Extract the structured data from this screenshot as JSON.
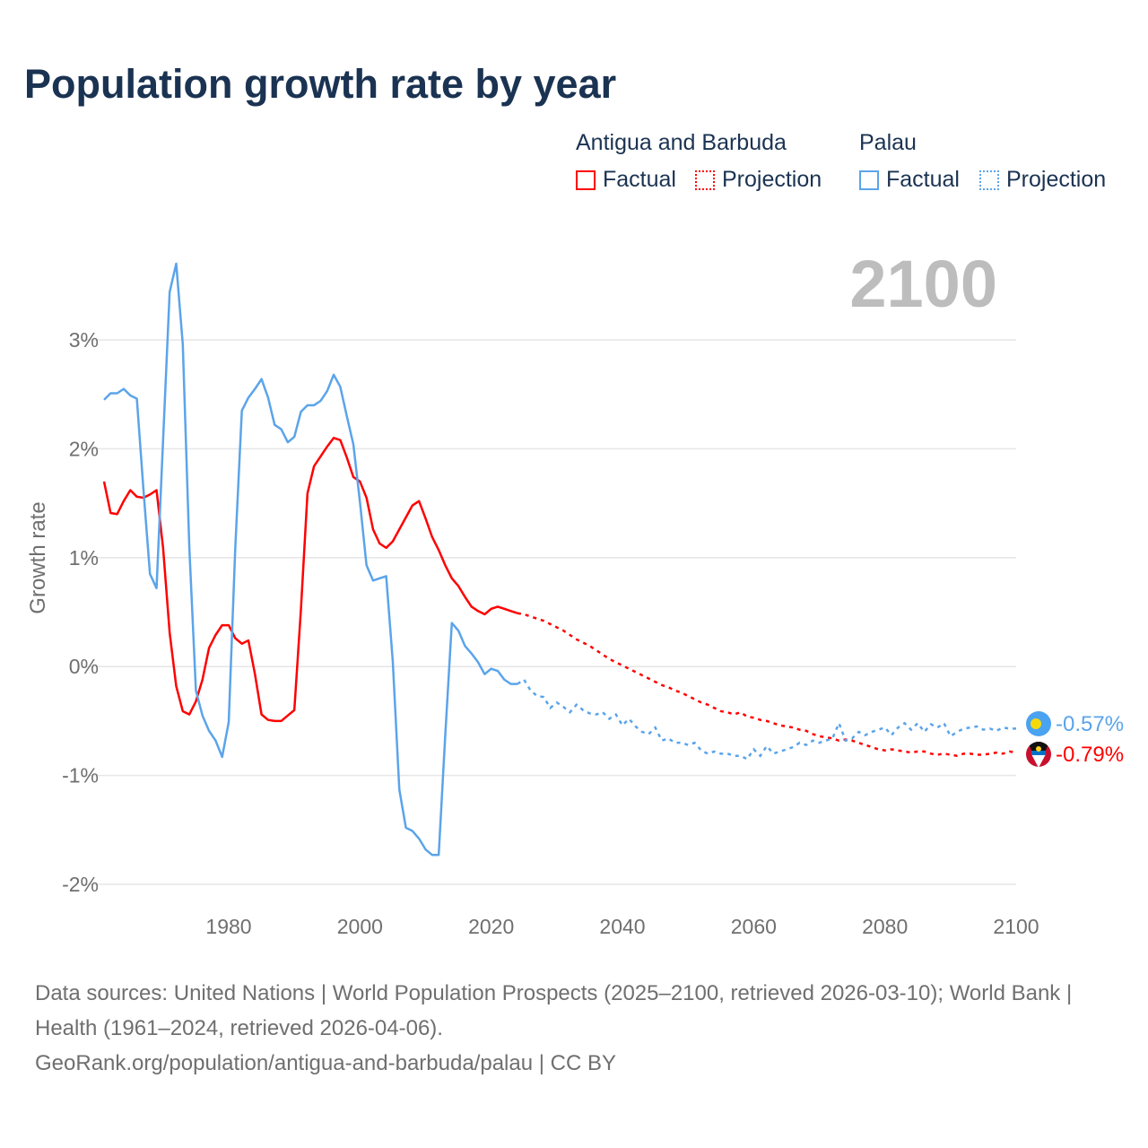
{
  "title": "Population growth rate by year",
  "legend": {
    "groups": [
      {
        "name": "Antigua and Barbuda",
        "factual": "Factual",
        "projection": "Projection",
        "color": "#ff0000"
      },
      {
        "name": "Palau",
        "factual": "Factual",
        "projection": "Projection",
        "color": "#5ba4ea"
      }
    ]
  },
  "year_display": "2100",
  "end_labels": {
    "palau": "-0.57%",
    "antigua": "-0.79%"
  },
  "footer": {
    "line1": "Data sources: United Nations | World Population Prospects (2025–2100, retrieved 2026-03-10); World Bank | Health (1961–2024, retrieved 2026-04-06).",
    "line2": "GeoRank.org/population/antigua-and-barbuda/palau | CC BY"
  },
  "chart_data": {
    "type": "line",
    "title": "Population growth rate by year",
    "xlabel": "",
    "ylabel": "Growth rate",
    "xlim": [
      1961,
      2100
    ],
    "ylim": [
      -2.2,
      3.8
    ],
    "xticks": [
      1980,
      2000,
      2020,
      2040,
      2060,
      2080,
      2100
    ],
    "xtick_labels": [
      "1980",
      "2000",
      "2020",
      "2040",
      "2060",
      "2080",
      "2100"
    ],
    "yticks": [
      3,
      2,
      1,
      0,
      -1,
      -2
    ],
    "ytick_labels": [
      "3%",
      "2%",
      "1%",
      "0%",
      "-1%",
      "-2%"
    ],
    "grid": true,
    "legend_position": "top-right",
    "series": [
      {
        "name": "Antigua and Barbuda",
        "color": "#ff0000",
        "factual_start": 1961,
        "factual": [
          1.7,
          1.41,
          1.4,
          1.52,
          1.62,
          1.56,
          1.55,
          1.58,
          1.62,
          1.09,
          0.31,
          -0.18,
          -0.41,
          -0.44,
          -0.32,
          -0.12,
          0.17,
          0.29,
          0.38,
          0.38,
          0.26,
          0.21,
          0.24,
          -0.07,
          -0.44,
          -0.49,
          -0.5,
          -0.5,
          -0.45,
          -0.4,
          0.52,
          1.59,
          1.84,
          1.93,
          2.02,
          2.1,
          2.08,
          1.92,
          1.74,
          1.7,
          1.55,
          1.26,
          1.13,
          1.09,
          1.15,
          1.26,
          1.37,
          1.48,
          1.52,
          1.36,
          1.19,
          1.07,
          0.93,
          0.81,
          0.74,
          0.64,
          0.55,
          0.51,
          0.48,
          0.53,
          0.55,
          0.53,
          0.51,
          0.49
        ],
        "projection_start": 2025,
        "projection": [
          0.48,
          0.46,
          0.44,
          0.42,
          0.39,
          0.36,
          0.33,
          0.29,
          0.25,
          0.22,
          0.19,
          0.15,
          0.11,
          0.07,
          0.04,
          0.01,
          -0.02,
          -0.05,
          -0.08,
          -0.11,
          -0.14,
          -0.17,
          -0.19,
          -0.22,
          -0.24,
          -0.27,
          -0.3,
          -0.33,
          -0.35,
          -0.38,
          -0.41,
          -0.42,
          -0.44,
          -0.42,
          -0.46,
          -0.47,
          -0.49,
          -0.5,
          -0.52,
          -0.54,
          -0.55,
          -0.56,
          -0.58,
          -0.59,
          -0.62,
          -0.64,
          -0.65,
          -0.66,
          -0.68,
          -0.67,
          -0.68,
          -0.7,
          -0.72,
          -0.74,
          -0.76,
          -0.77,
          -0.76,
          -0.77,
          -0.78,
          -0.79,
          -0.78,
          -0.78,
          -0.8,
          -0.81,
          -0.8,
          -0.81,
          -0.82,
          -0.8,
          -0.8,
          -0.81,
          -0.81,
          -0.8,
          -0.79,
          -0.8,
          -0.78,
          -0.79
        ]
      },
      {
        "name": "Palau",
        "color": "#5ba4ea",
        "factual_start": 1961,
        "factual": [
          2.45,
          2.51,
          2.51,
          2.55,
          2.49,
          2.46,
          1.63,
          0.85,
          0.72,
          2.08,
          3.44,
          3.7,
          2.96,
          1.09,
          -0.22,
          -0.45,
          -0.59,
          -0.68,
          -0.83,
          -0.51,
          1.09,
          2.35,
          2.47,
          2.55,
          2.64,
          2.47,
          2.22,
          2.18,
          2.06,
          2.11,
          2.34,
          2.4,
          2.4,
          2.44,
          2.53,
          2.68,
          2.57,
          2.3,
          2.04,
          1.51,
          0.93,
          0.79,
          0.81,
          0.83,
          0.05,
          -1.13,
          -1.48,
          -1.51,
          -1.58,
          -1.68,
          -1.73,
          -1.73,
          -0.63,
          0.4,
          0.33,
          0.19,
          0.12,
          0.04,
          -0.07,
          -0.02,
          -0.04,
          -0.12,
          -0.16,
          -0.16
        ],
        "projection_start": 2025,
        "projection": [
          -0.12,
          -0.22,
          -0.27,
          -0.28,
          -0.38,
          -0.33,
          -0.37,
          -0.42,
          -0.35,
          -0.4,
          -0.43,
          -0.44,
          -0.42,
          -0.48,
          -0.44,
          -0.54,
          -0.48,
          -0.55,
          -0.6,
          -0.62,
          -0.56,
          -0.68,
          -0.66,
          -0.7,
          -0.7,
          -0.72,
          -0.7,
          -0.77,
          -0.8,
          -0.78,
          -0.8,
          -0.8,
          -0.82,
          -0.82,
          -0.85,
          -0.76,
          -0.82,
          -0.73,
          -0.8,
          -0.78,
          -0.76,
          -0.74,
          -0.7,
          -0.72,
          -0.68,
          -0.7,
          -0.68,
          -0.66,
          -0.52,
          -0.68,
          -0.66,
          -0.6,
          -0.63,
          -0.6,
          -0.58,
          -0.56,
          -0.63,
          -0.56,
          -0.52,
          -0.58,
          -0.52,
          -0.6,
          -0.53,
          -0.56,
          -0.52,
          -0.64,
          -0.6,
          -0.57,
          -0.56,
          -0.55,
          -0.58,
          -0.57,
          -0.59,
          -0.56,
          -0.57,
          -0.57
        ]
      }
    ]
  }
}
